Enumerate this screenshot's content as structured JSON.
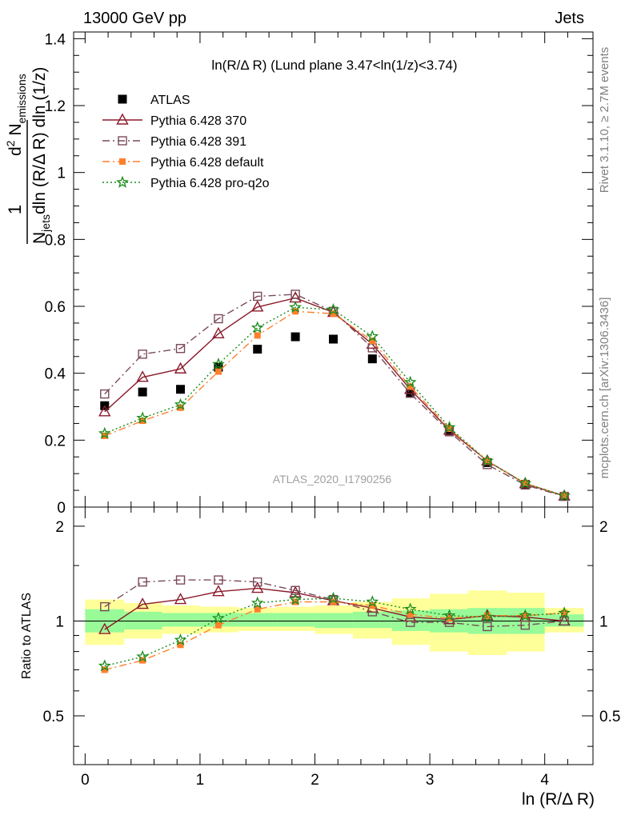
{
  "header": {
    "left": "13000 GeV pp",
    "right": "Jets"
  },
  "side_text": {
    "rivet": "Rivet 3.1.10, ≥ 2.7M events",
    "mcplots": "mcplots.cern.ch [arXiv:1306.3436]"
  },
  "chart_data": [
    {
      "type": "scatter",
      "title": "ln(R/Δ R) (Lund plane 3.47<ln(1/z)<3.74)",
      "watermark": "ATLAS_2020_I1790256",
      "xlabel": "ln (R/Δ R)",
      "ylabel": "1/N_jets d²N_emissions / dln(R/ΔR) dln(1/z)",
      "ylabel_parts": {
        "frac_num": "1",
        "frac_den": "N",
        "frac_den_sub": "jets",
        "num_prefix": "d",
        "num_sup": "2",
        "num_main": " N",
        "num_sub": "emissions",
        "den": "dln (R/Δ R) dln (1/z)"
      },
      "xlim": [
        -0.1,
        4.42
      ],
      "ylim": [
        0,
        1.42
      ],
      "yticks": [
        0,
        0.2,
        0.4,
        0.6,
        0.8,
        1,
        1.2,
        1.4
      ],
      "ytick_labels": [
        "0",
        "0.2",
        "0.4",
        "0.6",
        "0.8",
        "1",
        "1.2",
        "1.4"
      ],
      "x": [
        0.17,
        0.5,
        0.83,
        1.16,
        1.5,
        1.83,
        2.16,
        2.5,
        2.83,
        3.17,
        3.5,
        3.83,
        4.17
      ],
      "legend_position": "top-left",
      "series": [
        {
          "name": "ATLAS",
          "color": "#000000",
          "marker": "square-filled",
          "line": "none",
          "values": [
            0.303,
            0.344,
            0.352,
            0.418,
            0.472,
            0.509,
            0.502,
            0.443,
            0.342,
            0.228,
            0.133,
            0.068,
            0.032
          ]
        },
        {
          "name": "Pythia 6.428 370",
          "color": "#8b1a2b",
          "marker": "triangle-open",
          "line": "solid",
          "values": [
            0.285,
            0.388,
            0.413,
            0.518,
            0.598,
            0.625,
            0.582,
            0.487,
            0.352,
            0.23,
            0.138,
            0.07,
            0.033
          ]
        },
        {
          "name": "Pythia 6.428 391",
          "color": "#7a4a5a",
          "marker": "square-open",
          "line": "dashdot",
          "values": [
            0.338,
            0.457,
            0.474,
            0.563,
            0.63,
            0.636,
            0.585,
            0.476,
            0.34,
            0.225,
            0.127,
            0.066,
            0.032
          ]
        },
        {
          "name": "Pythia 6.428 default",
          "color": "#ff7f2a",
          "marker": "square-filled-small",
          "line": "dashdot",
          "values": [
            0.213,
            0.258,
            0.297,
            0.405,
            0.513,
            0.585,
            0.578,
            0.497,
            0.36,
            0.234,
            0.138,
            0.071,
            0.034
          ]
        },
        {
          "name": "Pythia 6.428 pro-q2o",
          "color": "#1a8c1a",
          "marker": "star-open",
          "line": "dotted",
          "values": [
            0.22,
            0.266,
            0.306,
            0.427,
            0.536,
            0.597,
            0.59,
            0.51,
            0.373,
            0.238,
            0.138,
            0.071,
            0.034
          ]
        }
      ]
    },
    {
      "type": "line",
      "ylabel": "Ratio to ATLAS",
      "xlabel": "ln (R/Δ R)",
      "xlim": [
        -0.1,
        4.42
      ],
      "xticks": [
        0,
        1,
        2,
        3,
        4
      ],
      "xtick_labels": [
        "0",
        "1",
        "2",
        "3",
        "4"
      ],
      "ylim": [
        0.35,
        2.3
      ],
      "yticks": [
        0.5,
        1,
        2
      ],
      "ytick_labels": [
        "0.5",
        "1",
        "2"
      ],
      "bin_edges": [
        0.0,
        0.34,
        0.67,
        1.0,
        1.33,
        1.67,
        2.0,
        2.33,
        2.67,
        3.0,
        3.33,
        3.67,
        4.0,
        4.34
      ],
      "band_inner": {
        "color": "#98fb98",
        "low": [
          0.92,
          0.94,
          0.96,
          0.96,
          0.96,
          0.96,
          0.95,
          0.95,
          0.93,
          0.92,
          0.91,
          0.91,
          0.96
        ],
        "high": [
          1.09,
          1.07,
          1.06,
          1.06,
          1.06,
          1.06,
          1.06,
          1.07,
          1.08,
          1.09,
          1.1,
          1.1,
          1.05
        ]
      },
      "band_outer": {
        "color": "#ffff99",
        "low": [
          0.84,
          0.88,
          0.91,
          0.92,
          0.93,
          0.93,
          0.91,
          0.88,
          0.84,
          0.8,
          0.78,
          0.8,
          0.92
        ],
        "high": [
          1.17,
          1.14,
          1.12,
          1.11,
          1.1,
          1.11,
          1.12,
          1.15,
          1.18,
          1.22,
          1.25,
          1.23,
          1.1
        ]
      },
      "series": [
        {
          "name": "Pythia 6.428 370",
          "values": [
            0.94,
            1.13,
            1.17,
            1.24,
            1.27,
            1.23,
            1.16,
            1.1,
            1.03,
            1.01,
            1.04,
            1.03,
            1.0
          ]
        },
        {
          "name": "Pythia 6.428 391",
          "values": [
            1.11,
            1.33,
            1.35,
            1.35,
            1.33,
            1.25,
            1.17,
            1.07,
            0.99,
            0.99,
            0.96,
            0.97,
            1.0
          ]
        },
        {
          "name": "Pythia 6.428 default",
          "values": [
            0.7,
            0.75,
            0.84,
            0.97,
            1.09,
            1.15,
            1.15,
            1.12,
            1.05,
            1.02,
            1.04,
            1.04,
            1.06
          ]
        },
        {
          "name": "Pythia 6.428 pro-q2o",
          "values": [
            0.72,
            0.77,
            0.87,
            1.02,
            1.14,
            1.17,
            1.18,
            1.15,
            1.09,
            1.04,
            1.03,
            1.04,
            1.06
          ]
        }
      ]
    }
  ]
}
